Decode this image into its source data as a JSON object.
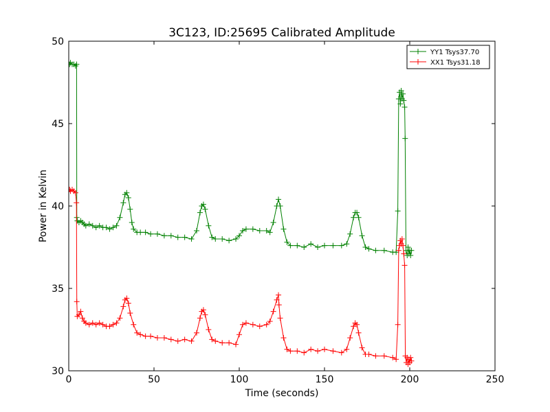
{
  "chart_data": {
    "type": "line",
    "title": "3C123, ID:25695 Calibrated Amplitude",
    "xlabel": "Time (seconds)",
    "ylabel": "Power in Kelvin",
    "xlim": [
      0,
      250
    ],
    "ylim": [
      30,
      50
    ],
    "xticks": [
      "0",
      "50",
      "100",
      "150",
      "200",
      "250"
    ],
    "yticks": [
      "30",
      "35",
      "40",
      "45",
      "50"
    ],
    "grid": false,
    "legend_position": "top-right",
    "marker": "plus",
    "series": [
      {
        "name": "YY1 Tsys37.70",
        "color": "#008000",
        "points": [
          [
            0.5,
            48.6
          ],
          [
            1,
            48.7
          ],
          [
            2,
            48.6
          ],
          [
            3,
            48.6
          ],
          [
            4,
            48.5
          ],
          [
            4.6,
            48.6
          ],
          [
            4.7,
            39.3
          ],
          [
            5,
            39.1
          ],
          [
            6,
            39.0
          ],
          [
            7,
            39.1
          ],
          [
            8,
            39.0
          ],
          [
            9,
            38.9
          ],
          [
            10,
            38.8
          ],
          [
            12,
            38.9
          ],
          [
            14,
            38.8
          ],
          [
            16,
            38.7
          ],
          [
            18,
            38.8
          ],
          [
            20,
            38.7
          ],
          [
            22,
            38.7
          ],
          [
            24,
            38.6
          ],
          [
            26,
            38.7
          ],
          [
            28,
            38.8
          ],
          [
            30,
            39.3
          ],
          [
            32,
            40.2
          ],
          [
            33,
            40.7
          ],
          [
            34,
            40.8
          ],
          [
            35,
            40.5
          ],
          [
            36,
            39.8
          ],
          [
            37,
            39.0
          ],
          [
            38,
            38.6
          ],
          [
            40,
            38.4
          ],
          [
            42,
            38.4
          ],
          [
            45,
            38.4
          ],
          [
            48,
            38.3
          ],
          [
            52,
            38.3
          ],
          [
            56,
            38.2
          ],
          [
            60,
            38.2
          ],
          [
            64,
            38.1
          ],
          [
            68,
            38.1
          ],
          [
            72,
            38.0
          ],
          [
            75,
            38.5
          ],
          [
            77,
            39.6
          ],
          [
            78,
            40.0
          ],
          [
            79,
            40.1
          ],
          [
            80,
            39.8
          ],
          [
            82,
            38.8
          ],
          [
            84,
            38.1
          ],
          [
            86,
            38.0
          ],
          [
            90,
            38.0
          ],
          [
            94,
            37.9
          ],
          [
            98,
            38.0
          ],
          [
            100,
            38.2
          ],
          [
            102,
            38.5
          ],
          [
            104,
            38.6
          ],
          [
            108,
            38.6
          ],
          [
            112,
            38.5
          ],
          [
            116,
            38.5
          ],
          [
            118,
            38.4
          ],
          [
            120,
            39.0
          ],
          [
            122,
            40.0
          ],
          [
            123,
            40.4
          ],
          [
            124,
            40.0
          ],
          [
            126,
            38.6
          ],
          [
            128,
            37.8
          ],
          [
            130,
            37.6
          ],
          [
            134,
            37.6
          ],
          [
            138,
            37.5
          ],
          [
            142,
            37.7
          ],
          [
            146,
            37.5
          ],
          [
            150,
            37.6
          ],
          [
            155,
            37.6
          ],
          [
            160,
            37.6
          ],
          [
            163,
            37.7
          ],
          [
            165,
            38.3
          ],
          [
            167,
            39.3
          ],
          [
            168,
            39.6
          ],
          [
            169,
            39.6
          ],
          [
            170,
            39.3
          ],
          [
            172,
            38.2
          ],
          [
            174,
            37.5
          ],
          [
            176,
            37.4
          ],
          [
            180,
            37.3
          ],
          [
            185,
            37.3
          ],
          [
            190,
            37.2
          ],
          [
            192,
            37.2
          ],
          [
            193,
            39.7
          ],
          [
            193.5,
            46.5
          ],
          [
            194,
            46.9
          ],
          [
            194.5,
            46.2
          ],
          [
            195,
            47.0
          ],
          [
            195.5,
            46.5
          ],
          [
            196,
            46.8
          ],
          [
            196.5,
            46.4
          ],
          [
            197,
            46.0
          ],
          [
            197.3,
            44.1
          ],
          [
            197.8,
            37.3
          ],
          [
            198.5,
            37.0
          ],
          [
            199,
            37.5
          ],
          [
            199.5,
            37.1
          ],
          [
            200,
            37.3
          ],
          [
            200.5,
            37.0
          ],
          [
            201,
            37.3
          ]
        ]
      },
      {
        "name": "XX1 Tsys31.18",
        "color": "#ff0000",
        "points": [
          [
            0.5,
            41.0
          ],
          [
            1,
            40.9
          ],
          [
            2,
            41.0
          ],
          [
            3,
            40.9
          ],
          [
            4,
            40.8
          ],
          [
            4.5,
            40.2
          ],
          [
            4.7,
            34.2
          ],
          [
            5,
            33.3
          ],
          [
            6,
            33.4
          ],
          [
            7,
            33.6
          ],
          [
            8,
            33.2
          ],
          [
            9,
            33.0
          ],
          [
            10,
            32.9
          ],
          [
            12,
            32.8
          ],
          [
            14,
            32.9
          ],
          [
            16,
            32.8
          ],
          [
            18,
            32.9
          ],
          [
            20,
            32.8
          ],
          [
            22,
            32.7
          ],
          [
            24,
            32.7
          ],
          [
            26,
            32.8
          ],
          [
            28,
            32.9
          ],
          [
            30,
            33.2
          ],
          [
            32,
            33.9
          ],
          [
            33,
            34.3
          ],
          [
            34,
            34.4
          ],
          [
            35,
            34.1
          ],
          [
            36,
            33.5
          ],
          [
            38,
            32.8
          ],
          [
            40,
            32.3
          ],
          [
            42,
            32.2
          ],
          [
            45,
            32.1
          ],
          [
            48,
            32.1
          ],
          [
            52,
            32.0
          ],
          [
            56,
            32.0
          ],
          [
            60,
            31.9
          ],
          [
            64,
            31.8
          ],
          [
            68,
            31.9
          ],
          [
            72,
            31.8
          ],
          [
            75,
            32.3
          ],
          [
            77,
            33.2
          ],
          [
            78,
            33.6
          ],
          [
            79,
            33.7
          ],
          [
            80,
            33.4
          ],
          [
            82,
            32.5
          ],
          [
            84,
            31.9
          ],
          [
            86,
            31.8
          ],
          [
            90,
            31.7
          ],
          [
            94,
            31.7
          ],
          [
            98,
            31.6
          ],
          [
            100,
            32.2
          ],
          [
            102,
            32.8
          ],
          [
            104,
            32.9
          ],
          [
            108,
            32.8
          ],
          [
            112,
            32.7
          ],
          [
            116,
            32.8
          ],
          [
            118,
            33.0
          ],
          [
            120,
            33.6
          ],
          [
            122,
            34.3
          ],
          [
            123,
            34.6
          ],
          [
            123.3,
            34.0
          ],
          [
            124,
            33.2
          ],
          [
            126,
            32.0
          ],
          [
            128,
            31.3
          ],
          [
            130,
            31.2
          ],
          [
            134,
            31.2
          ],
          [
            138,
            31.1
          ],
          [
            142,
            31.3
          ],
          [
            146,
            31.2
          ],
          [
            150,
            31.3
          ],
          [
            155,
            31.2
          ],
          [
            160,
            31.1
          ],
          [
            163,
            31.3
          ],
          [
            165,
            32.0
          ],
          [
            167,
            32.7
          ],
          [
            168,
            32.9
          ],
          [
            169,
            32.8
          ],
          [
            170,
            32.3
          ],
          [
            172,
            31.4
          ],
          [
            174,
            31.0
          ],
          [
            176,
            31.0
          ],
          [
            180,
            30.9
          ],
          [
            185,
            30.9
          ],
          [
            190,
            30.8
          ],
          [
            192,
            30.7
          ],
          [
            193,
            32.8
          ],
          [
            193.5,
            37.3
          ],
          [
            194,
            37.6
          ],
          [
            194.5,
            37.9
          ],
          [
            195,
            37.7
          ],
          [
            195.5,
            38.0
          ],
          [
            196,
            37.6
          ],
          [
            196.5,
            37.1
          ],
          [
            197,
            36.4
          ],
          [
            197.4,
            30.9
          ],
          [
            198,
            30.5
          ],
          [
            198.5,
            30.8
          ],
          [
            199,
            30.4
          ],
          [
            199.5,
            30.7
          ],
          [
            200,
            30.5
          ],
          [
            200.5,
            30.8
          ],
          [
            201,
            30.6
          ]
        ]
      }
    ]
  }
}
